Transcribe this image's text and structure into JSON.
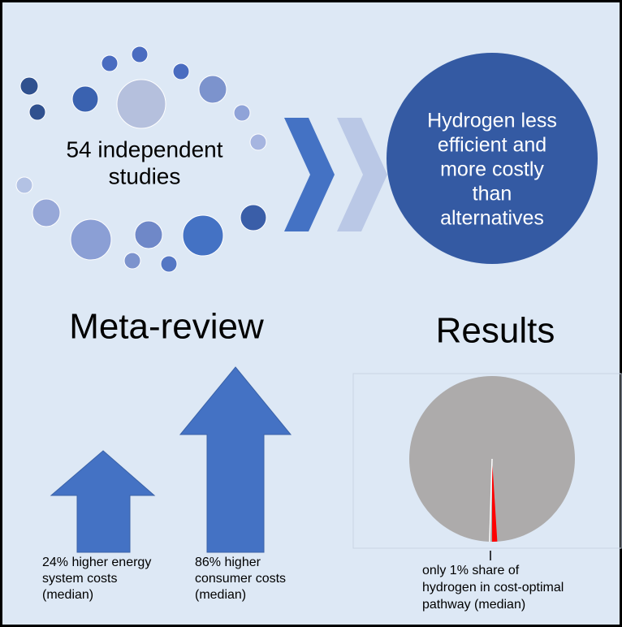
{
  "meta_review": {
    "circle_label": [
      "54 independent",
      "studies"
    ],
    "heading": "Meta-review",
    "arrows": [
      {
        "caption": [
          "24% higher energy",
          "system costs",
          "(median)"
        ]
      },
      {
        "caption": [
          "86% higher",
          "consumer costs",
          "(median)"
        ]
      }
    ]
  },
  "results": {
    "circle_label": [
      "Hydrogen less",
      "efficient and",
      "more costly",
      "than",
      "alternatives"
    ],
    "heading": "Results",
    "pie_caption": [
      "only 1% share of",
      "hydrogen in cost-optimal",
      "pathway (median)"
    ]
  }
}
